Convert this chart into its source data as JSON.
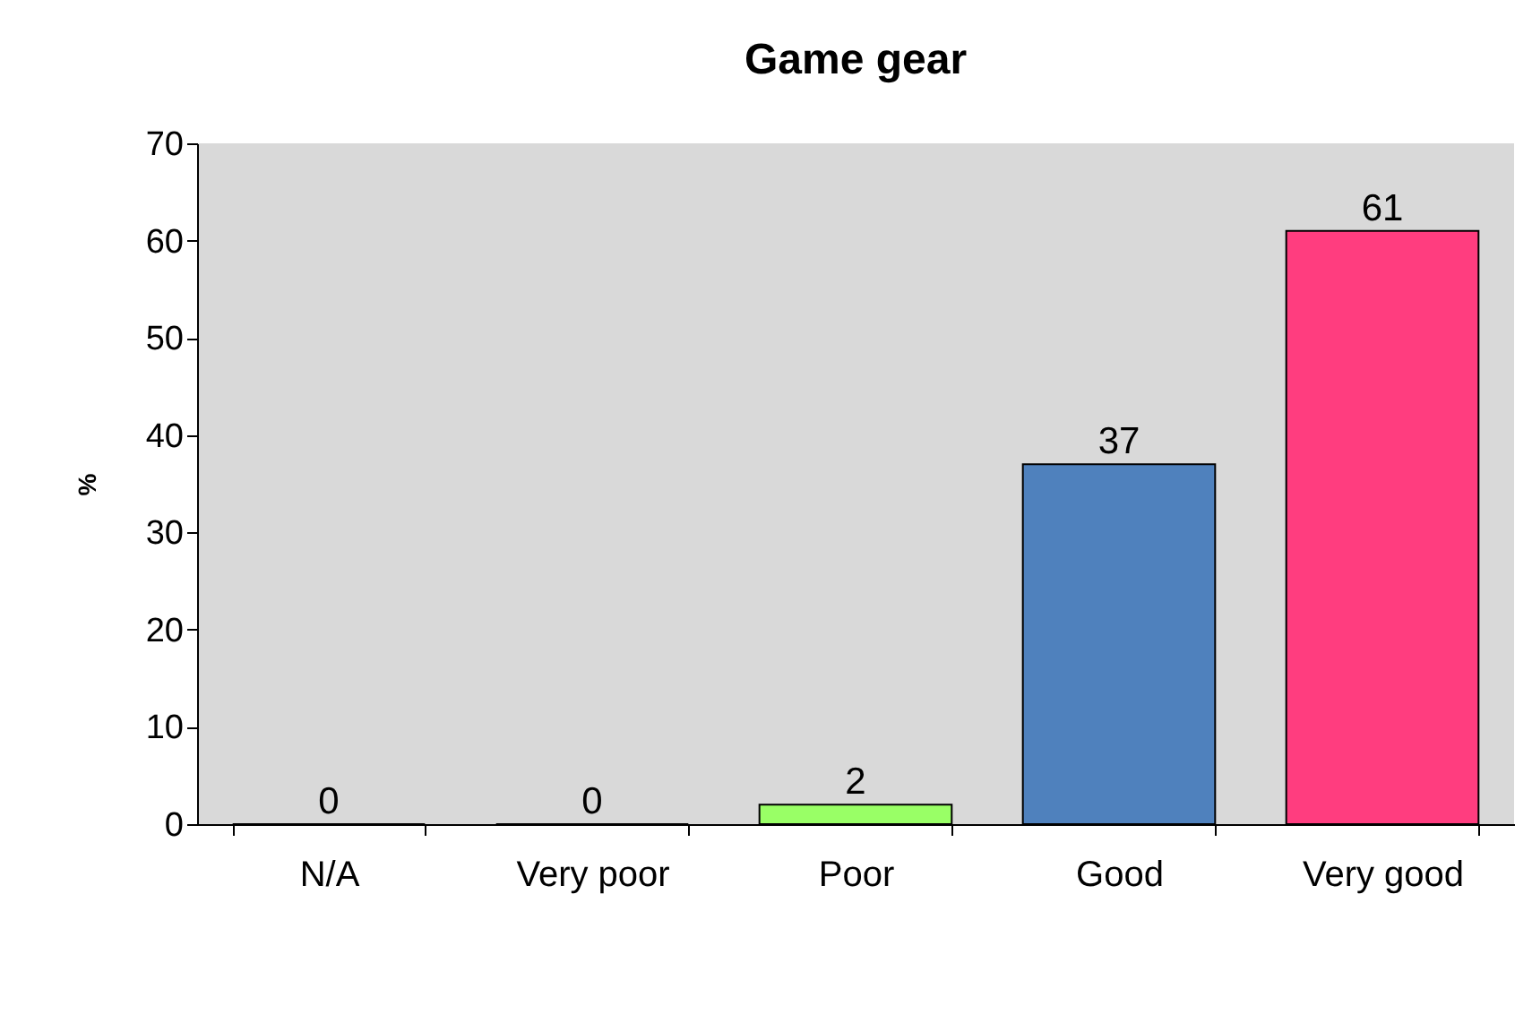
{
  "chart_data": {
    "type": "bar",
    "title": "Game gear",
    "ylabel": "%",
    "categories": [
      "N/A",
      "Very poor",
      "Poor",
      "Good",
      "Very good"
    ],
    "values": [
      0,
      0,
      2,
      37,
      61
    ],
    "colors": [
      "#9999ff",
      "#ffcc66",
      "#99ff66",
      "#4f81bd",
      "#ff3d7f"
    ],
    "ylim": [
      0,
      70
    ],
    "yticks": [
      0,
      10,
      20,
      30,
      40,
      50,
      60,
      70
    ],
    "grid": false,
    "data_labels": true
  }
}
